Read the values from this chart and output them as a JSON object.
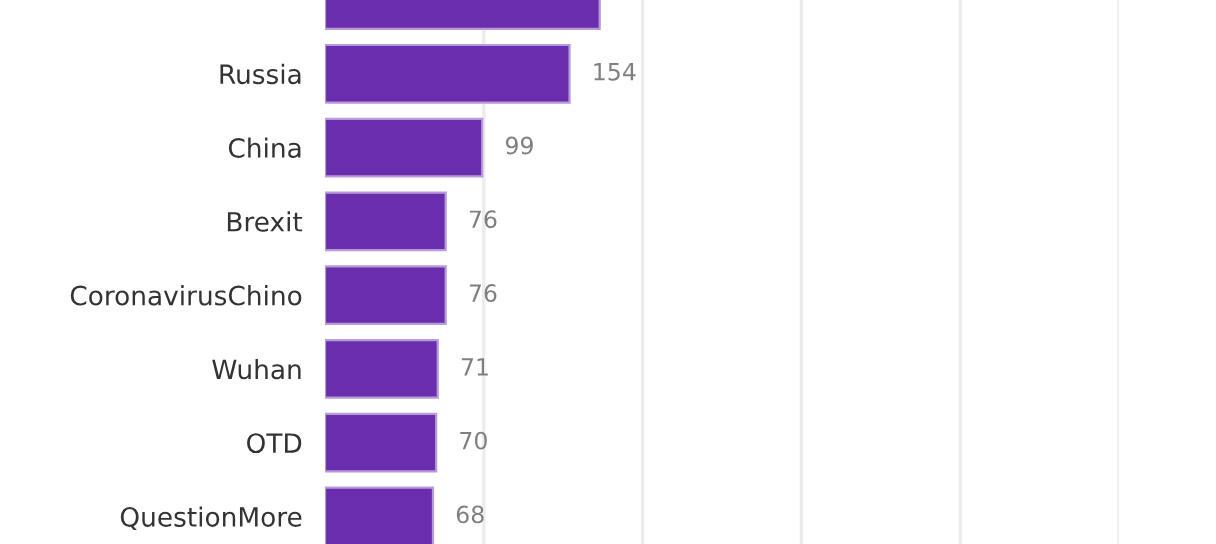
{
  "chart_data": {
    "type": "bar",
    "orientation": "horizontal",
    "categories": [
      null,
      "Russia",
      "China",
      "Brexit",
      "CoronavirusChino",
      "Wuhan",
      "OTD",
      "QuestionMore"
    ],
    "values": [
      173,
      154,
      99,
      76,
      76,
      71,
      70,
      68
    ],
    "value_labels": [
      null,
      "154",
      "99",
      "76",
      "76",
      "71",
      "70",
      "68"
    ],
    "color": "#6a2dad",
    "xlim": [
      0,
      500
    ],
    "xticks": [
      {
        "value": 100,
        "label": null
      },
      {
        "value": 200,
        "label": null
      },
      {
        "value": 300,
        "label": null
      },
      {
        "value": 400,
        "label": null
      },
      {
        "value": 500,
        "label": null
      }
    ],
    "grid": "x",
    "legend": false,
    "tick_labels": "y"
  }
}
